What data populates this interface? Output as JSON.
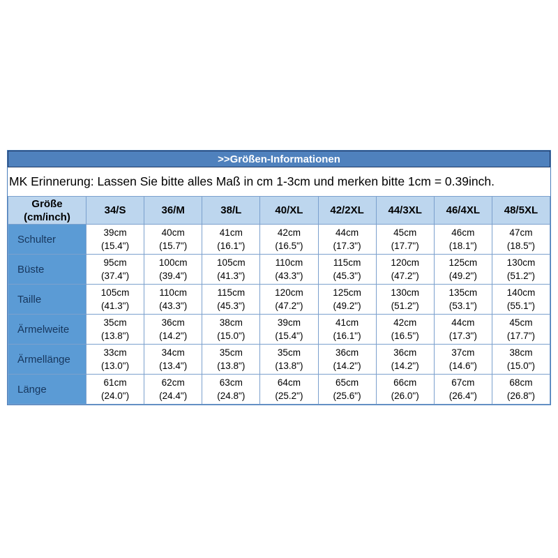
{
  "title_bar": {
    "label": ">>Größen-Informationen"
  },
  "note": {
    "text": "MK Erinnerung: Lassen Sie bitte alles Maß in cm 1-3cm und merken bitte 1cm = 0.39inch."
  },
  "table": {
    "corner": {
      "line1": "Größe",
      "line2": "(cm/inch)"
    },
    "columns": [
      "34/S",
      "36/M",
      "38/L",
      "40/XL",
      "42/2XL",
      "44/3XL",
      "46/4XL",
      "48/5XL"
    ],
    "rows": [
      {
        "label": "Schulter",
        "cells": [
          [
            "39cm",
            "(15.4\")"
          ],
          [
            "40cm",
            "(15.7\")"
          ],
          [
            "41cm",
            "(16.1\")"
          ],
          [
            "42cm",
            "(16.5\")"
          ],
          [
            "44cm",
            "(17.3\")"
          ],
          [
            "45cm",
            "(17.7\")"
          ],
          [
            "46cm",
            "(18.1\")"
          ],
          [
            "47cm",
            "(18.5\")"
          ]
        ]
      },
      {
        "label": "Büste",
        "cells": [
          [
            "95cm",
            "(37.4\")"
          ],
          [
            "100cm",
            "(39.4\")"
          ],
          [
            "105cm",
            "(41.3\")"
          ],
          [
            "110cm",
            "(43.3\")"
          ],
          [
            "115cm",
            "(45.3\")"
          ],
          [
            "120cm",
            "(47.2\")"
          ],
          [
            "125cm",
            "(49.2\")"
          ],
          [
            "130cm",
            "(51.2\")"
          ]
        ]
      },
      {
        "label": "Taille",
        "cells": [
          [
            "105cm",
            "(41.3\")"
          ],
          [
            "110cm",
            "(43.3\")"
          ],
          [
            "115cm",
            "(45.3\")"
          ],
          [
            "120cm",
            "(47.2\")"
          ],
          [
            "125cm",
            "(49.2\")"
          ],
          [
            "130cm",
            "(51.2\")"
          ],
          [
            "135cm",
            "(53.1\")"
          ],
          [
            "140cm",
            "(55.1\")"
          ]
        ]
      },
      {
        "label": "Ärmelweite",
        "cells": [
          [
            "35cm",
            "(13.8\")"
          ],
          [
            "36cm",
            "(14.2\")"
          ],
          [
            "38cm",
            "(15.0\")"
          ],
          [
            "39cm",
            "(15.4\")"
          ],
          [
            "41cm",
            "(16.1\")"
          ],
          [
            "42cm",
            "(16.5\")"
          ],
          [
            "44cm",
            "(17.3\")"
          ],
          [
            "45cm",
            "(17.7\")"
          ]
        ]
      },
      {
        "label": "Ärmellänge",
        "cells": [
          [
            "33cm",
            "(13.0\")"
          ],
          [
            "34cm",
            "(13.4\")"
          ],
          [
            "35cm",
            "(13.8\")"
          ],
          [
            "35cm",
            "(13.8\")"
          ],
          [
            "36cm",
            "(14.2\")"
          ],
          [
            "36cm",
            "(14.2\")"
          ],
          [
            "37cm",
            "(14.6\")"
          ],
          [
            "38cm",
            "(15.0\")"
          ]
        ]
      },
      {
        "label": "Länge",
        "cells": [
          [
            "61cm",
            "(24.0\")"
          ],
          [
            "62cm",
            "(24.4\")"
          ],
          [
            "63cm",
            "(24.8\")"
          ],
          [
            "64cm",
            "(25.2\")"
          ],
          [
            "65cm",
            "(25.6\")"
          ],
          [
            "66cm",
            "(26.0\")"
          ],
          [
            "67cm",
            "(26.4\")"
          ],
          [
            "68cm",
            "(26.8\")"
          ]
        ]
      }
    ]
  },
  "colors": {
    "title_bar_bg": "#4f81bd",
    "title_bar_border": "#1f3864",
    "outer_border": "#4a7ebb",
    "header_row_bg": "#bdd6ee",
    "label_col_bg": "#5b9bd5",
    "label_text": "#17375e",
    "grid_border": "#7ba0cd"
  }
}
